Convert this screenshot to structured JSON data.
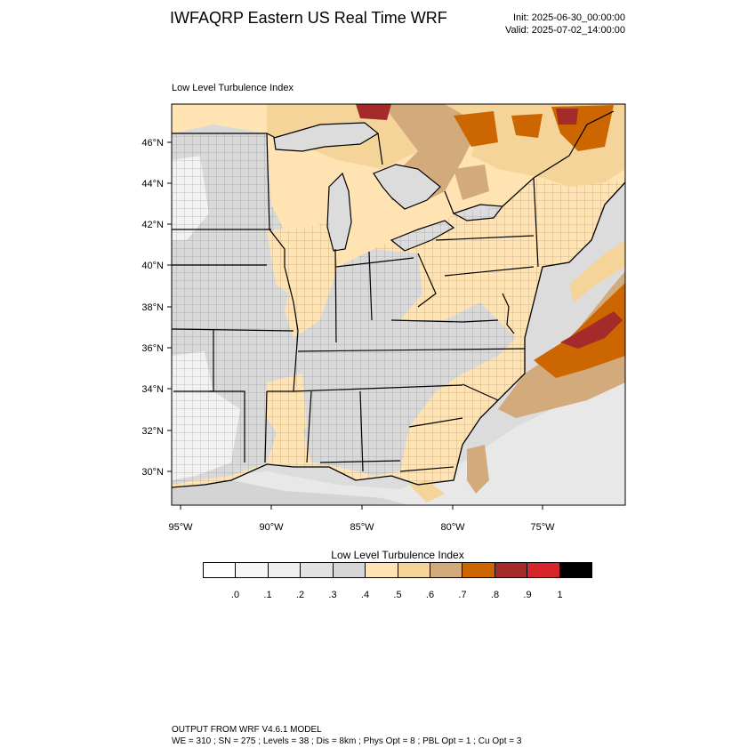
{
  "header": {
    "title": "IWFAQRP Eastern US Real Time WRF",
    "init": "Init: 2025-06-30_00:00:00",
    "valid": "Valid: 2025-07-02_14:00:00"
  },
  "panel": {
    "title": "Low Level Turbulence Index"
  },
  "map": {
    "lat_labels": [
      "46°N",
      "44°N",
      "42°N",
      "40°N",
      "38°N",
      "36°N",
      "34°N",
      "32°N",
      "30°N"
    ],
    "lon_labels": [
      "95°W",
      "90°W",
      "85°W",
      "80°W",
      "75°W"
    ],
    "colors": {
      "water": "#ffffff",
      "land_low": "#d9d9d9",
      "land_mid": "#e6e6e6",
      "beige": "#ffe3b3",
      "tan": "#f5d49a",
      "brown": "#d2aa7b",
      "orange": "#cc6600",
      "dark_red": "#a52a2a",
      "boundary": "#000000"
    }
  },
  "colorbar": {
    "title": "Low Level Turbulence Index",
    "colors": [
      "#ffffff",
      "#f7f7f7",
      "#efefef",
      "#e2e2e2",
      "#d6d6d6",
      "#ffe3b3",
      "#f5d49a",
      "#d2aa7b",
      "#cc6600",
      "#a52a2a",
      "#d7262b",
      "#000000"
    ],
    "ticks": [
      ".0",
      ".1",
      ".2",
      ".3",
      ".4",
      ".5",
      ".6",
      ".7",
      ".8",
      ".9",
      "1"
    ]
  },
  "footer": {
    "line1": "OUTPUT FROM WRF V4.6.1 MODEL",
    "line2": "WE = 310 ; SN = 275 ; Levels = 38 ; Dis = 8km ; Phys Opt = 8 ; PBL Opt = 1 ; Cu Opt = 3"
  }
}
